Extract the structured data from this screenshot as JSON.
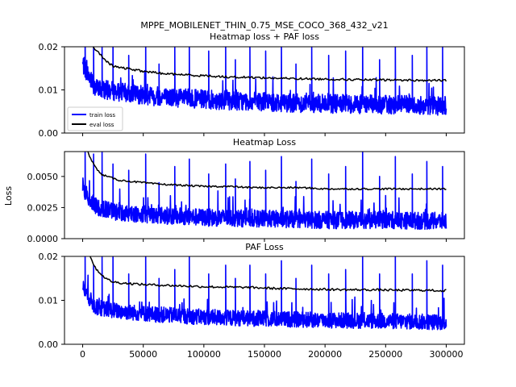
{
  "figure": {
    "suptitle_line1": "MPPE_MOBILENET_THIN_0.75_MSE_COCO_368_432_v21",
    "suptitle_line2": "Heatmap loss + PAF loss",
    "shared_ylabel": "Loss"
  },
  "colors": {
    "train": "#0000ff",
    "eval": "#000000",
    "axes": "#000000",
    "background": "#ffffff"
  },
  "chart_data": [
    {
      "type": "line",
      "title": "",
      "xlabel": "",
      "ylabel": "",
      "xlim": [
        -15000,
        315000
      ],
      "ylim": [
        0,
        0.02
      ],
      "yticks": [
        {
          "value": 0.0,
          "label": "0.00"
        },
        {
          "value": 0.01,
          "label": "0.01"
        },
        {
          "value": 0.02,
          "label": "0.02"
        }
      ],
      "xticks": [],
      "legend": {
        "position": "lower-left",
        "entries": [
          "train loss",
          "eval loss"
        ]
      },
      "series": [
        {
          "name": "train loss",
          "color": "#0000ff",
          "x_range": [
            0,
            300000
          ],
          "trend": [
            [
              0,
              0.016
            ],
            [
              10000,
              0.0105
            ],
            [
              30000,
              0.0095
            ],
            [
              60000,
              0.0085
            ],
            [
              100000,
              0.0078
            ],
            [
              150000,
              0.0072
            ],
            [
              200000,
              0.0068
            ],
            [
              250000,
              0.0066
            ],
            [
              300000,
              0.0063
            ]
          ],
          "noise": 0.0022,
          "noise_floor": 0.0016,
          "spikes": [
            [
              2000,
              0.024
            ],
            [
              9000,
              0.021
            ],
            [
              16000,
              0.02
            ],
            [
              25000,
              0.022
            ],
            [
              38000,
              0.018
            ],
            [
              52000,
              0.022
            ],
            [
              63000,
              0.016
            ],
            [
              76000,
              0.02
            ],
            [
              88000,
              0.021
            ],
            [
              104000,
              0.019
            ],
            [
              118000,
              0.02
            ],
            [
              126000,
              0.017
            ],
            [
              138000,
              0.02
            ],
            [
              151000,
              0.019
            ],
            [
              164000,
              0.021
            ],
            [
              176000,
              0.016
            ],
            [
              189000,
              0.02
            ],
            [
              203000,
              0.018
            ],
            [
              217000,
              0.019
            ],
            [
              231000,
              0.024
            ],
            [
              245000,
              0.017
            ],
            [
              258000,
              0.021
            ],
            [
              272000,
              0.018
            ],
            [
              284000,
              0.021
            ],
            [
              297000,
              0.02
            ]
          ]
        },
        {
          "name": "eval loss",
          "color": "#000000",
          "points": [
            [
              0,
              0.026
            ],
            [
              5000,
              0.022
            ],
            [
              10000,
              0.0195
            ],
            [
              15000,
              0.018
            ],
            [
              20000,
              0.0165
            ],
            [
              25000,
              0.0155
            ],
            [
              30000,
              0.0152
            ],
            [
              40000,
              0.0148
            ],
            [
              50000,
              0.0143
            ],
            [
              60000,
              0.014
            ],
            [
              70000,
              0.0137
            ],
            [
              80000,
              0.0136
            ],
            [
              90000,
              0.0134
            ],
            [
              100000,
              0.0133
            ],
            [
              120000,
              0.013
            ],
            [
              140000,
              0.0129
            ],
            [
              160000,
              0.0127
            ],
            [
              180000,
              0.0126
            ],
            [
              200000,
              0.0125
            ],
            [
              220000,
              0.0124
            ],
            [
              240000,
              0.0123
            ],
            [
              260000,
              0.0123
            ],
            [
              280000,
              0.0122
            ],
            [
              300000,
              0.0122
            ]
          ],
          "jitter": 0.00025
        }
      ]
    },
    {
      "type": "line",
      "title": "Heatmap Loss",
      "xlabel": "",
      "ylabel": "",
      "xlim": [
        -15000,
        315000
      ],
      "ylim": [
        0,
        0.007
      ],
      "yticks": [
        {
          "value": 0.0,
          "label": "0.0000"
        },
        {
          "value": 0.0025,
          "label": "0.0025"
        },
        {
          "value": 0.005,
          "label": "0.0050"
        }
      ],
      "xticks": [],
      "series": [
        {
          "name": "",
          "color": "#0000ff",
          "x_range": [
            0,
            300000
          ],
          "trend": [
            [
              0,
              0.004
            ],
            [
              10000,
              0.0026
            ],
            [
              30000,
              0.0021
            ],
            [
              60000,
              0.0019
            ],
            [
              100000,
              0.0017
            ],
            [
              150000,
              0.0016
            ],
            [
              200000,
              0.0015
            ],
            [
              250000,
              0.0015
            ],
            [
              300000,
              0.0014
            ]
          ],
          "noise": 0.0007,
          "noise_floor": 0.0004,
          "spikes": [
            [
              2000,
              0.0075
            ],
            [
              9000,
              0.0068
            ],
            [
              16000,
              0.0072
            ],
            [
              25000,
              0.006
            ],
            [
              38000,
              0.0055
            ],
            [
              52000,
              0.0068
            ],
            [
              63000,
              0.0045
            ],
            [
              76000,
              0.0058
            ],
            [
              88000,
              0.0064
            ],
            [
              104000,
              0.0052
            ],
            [
              118000,
              0.006
            ],
            [
              126000,
              0.0048
            ],
            [
              138000,
              0.0062
            ],
            [
              151000,
              0.0055
            ],
            [
              164000,
              0.0066
            ],
            [
              176000,
              0.0046
            ],
            [
              189000,
              0.0064
            ],
            [
              203000,
              0.0052
            ],
            [
              217000,
              0.0058
            ],
            [
              231000,
              0.0075
            ],
            [
              245000,
              0.005
            ],
            [
              258000,
              0.0066
            ],
            [
              272000,
              0.0052
            ],
            [
              284000,
              0.0062
            ],
            [
              297000,
              0.0058
            ]
          ]
        },
        {
          "name": "",
          "color": "#000000",
          "points": [
            [
              0,
              0.0085
            ],
            [
              5000,
              0.0068
            ],
            [
              10000,
              0.0058
            ],
            [
              15000,
              0.0052
            ],
            [
              20000,
              0.005
            ],
            [
              30000,
              0.0047
            ],
            [
              40000,
              0.0046
            ],
            [
              50000,
              0.0045
            ],
            [
              60000,
              0.0044
            ],
            [
              80000,
              0.0043
            ],
            [
              100000,
              0.0042
            ],
            [
              120000,
              0.0042
            ],
            [
              140000,
              0.0041
            ],
            [
              160000,
              0.0041
            ],
            [
              180000,
              0.0041
            ],
            [
              200000,
              0.004
            ],
            [
              220000,
              0.004
            ],
            [
              240000,
              0.004
            ],
            [
              260000,
              0.004
            ],
            [
              280000,
              0.004
            ],
            [
              300000,
              0.004
            ]
          ],
          "jitter": 7e-05
        }
      ]
    },
    {
      "type": "line",
      "title": "PAF Loss",
      "xlabel": "",
      "ylabel": "",
      "xlim": [
        -15000,
        315000
      ],
      "ylim": [
        0,
        0.02
      ],
      "yticks": [
        {
          "value": 0.0,
          "label": "0.00"
        },
        {
          "value": 0.01,
          "label": "0.01"
        },
        {
          "value": 0.02,
          "label": "0.02"
        }
      ],
      "xticks": [
        {
          "value": 0,
          "label": "0"
        },
        {
          "value": 50000,
          "label": "50000"
        },
        {
          "value": 100000,
          "label": "100000"
        },
        {
          "value": 150000,
          "label": "150000"
        },
        {
          "value": 200000,
          "label": "200000"
        },
        {
          "value": 250000,
          "label": "250000"
        },
        {
          "value": 300000,
          "label": "300000"
        }
      ],
      "series": [
        {
          "name": "",
          "color": "#0000ff",
          "x_range": [
            0,
            300000
          ],
          "trend": [
            [
              0,
              0.013
            ],
            [
              10000,
              0.0085
            ],
            [
              30000,
              0.0075
            ],
            [
              60000,
              0.0068
            ],
            [
              100000,
              0.0062
            ],
            [
              150000,
              0.0058
            ],
            [
              200000,
              0.0055
            ],
            [
              250000,
              0.0053
            ],
            [
              300000,
              0.005
            ]
          ],
          "noise": 0.0018,
          "noise_floor": 0.0012,
          "spikes": [
            [
              2000,
              0.021
            ],
            [
              9000,
              0.018
            ],
            [
              16000,
              0.02
            ],
            [
              25000,
              0.021
            ],
            [
              38000,
              0.016
            ],
            [
              52000,
              0.02
            ],
            [
              63000,
              0.015
            ],
            [
              76000,
              0.017
            ],
            [
              88000,
              0.02
            ],
            [
              104000,
              0.016
            ],
            [
              118000,
              0.018
            ],
            [
              126000,
              0.015
            ],
            [
              138000,
              0.018
            ],
            [
              151000,
              0.016
            ],
            [
              164000,
              0.019
            ],
            [
              176000,
              0.015
            ],
            [
              189000,
              0.018
            ],
            [
              203000,
              0.016
            ],
            [
              217000,
              0.017
            ],
            [
              231000,
              0.021
            ],
            [
              245000,
              0.016
            ],
            [
              258000,
              0.02
            ],
            [
              272000,
              0.016
            ],
            [
              284000,
              0.019
            ],
            [
              297000,
              0.018
            ]
          ]
        },
        {
          "name": "",
          "color": "#000000",
          "points": [
            [
              0,
              0.026
            ],
            [
              5000,
              0.021
            ],
            [
              10000,
              0.0175
            ],
            [
              15000,
              0.016
            ],
            [
              20000,
              0.0148
            ],
            [
              25000,
              0.0142
            ],
            [
              30000,
              0.014
            ],
            [
              40000,
              0.0138
            ],
            [
              50000,
              0.0136
            ],
            [
              60000,
              0.0135
            ],
            [
              80000,
              0.0133
            ],
            [
              100000,
              0.0131
            ],
            [
              120000,
              0.013
            ],
            [
              140000,
              0.0129
            ],
            [
              160000,
              0.0127
            ],
            [
              180000,
              0.0126
            ],
            [
              200000,
              0.0125
            ],
            [
              220000,
              0.0124
            ],
            [
              240000,
              0.0124
            ],
            [
              260000,
              0.0123
            ],
            [
              280000,
              0.0123
            ],
            [
              300000,
              0.0122
            ]
          ],
          "jitter": 0.00025
        }
      ]
    }
  ]
}
